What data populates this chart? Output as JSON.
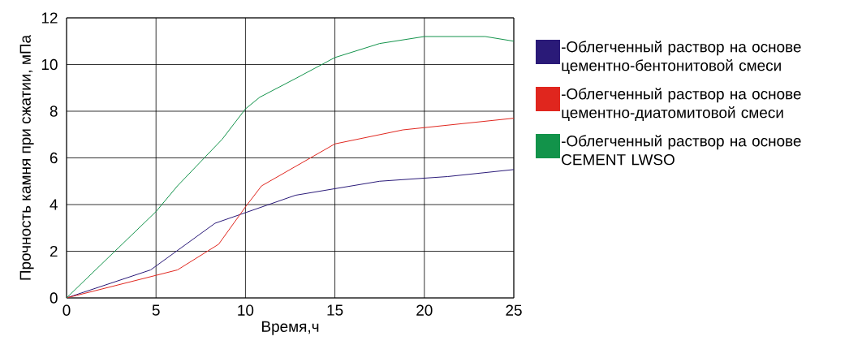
{
  "chart_data": {
    "type": "line",
    "xlabel": "Время,ч",
    "ylabel": "Прочность камня при сжатии, мПа",
    "xlim": [
      0,
      25
    ],
    "ylim": [
      0,
      12
    ],
    "xticks": [
      0,
      5,
      10,
      15,
      20,
      25
    ],
    "yticks": [
      0,
      2,
      4,
      6,
      8,
      10,
      12
    ],
    "grid": true,
    "legend": "right",
    "series": [
      {
        "name": "-Облегченный раствор на основе цементно-бентонитовой смеси",
        "color": "#2a1a78",
        "x": [
          0,
          4.7,
          8.3,
          12.8,
          17.5,
          21.3,
          25
        ],
        "values": [
          0,
          1.2,
          3.2,
          4.4,
          5.0,
          5.2,
          5.5
        ]
      },
      {
        "name": "-Облегченный раствор на основе цементно-диатомитовой смеси",
        "color": "#e0261e",
        "x": [
          0,
          6.2,
          8.5,
          10,
          10.9,
          15,
          18.8,
          25
        ],
        "values": [
          0,
          1.2,
          2.3,
          3.9,
          4.8,
          6.6,
          7.2,
          7.7
        ]
      },
      {
        "name": "-Облегченный раствор на основе CEMENT LWSO",
        "color": "#12934a",
        "x": [
          0,
          2.7,
          5,
          6.2,
          7.7,
          8.7,
          10,
          10.8,
          12.8,
          15,
          17.5,
          20,
          21.7,
          23.4,
          25
        ],
        "values": [
          0,
          2.0,
          3.7,
          4.8,
          6.0,
          6.8,
          8.1,
          8.6,
          9.4,
          10.3,
          10.9,
          11.2,
          11.2,
          11.2,
          11.0
        ]
      }
    ]
  }
}
